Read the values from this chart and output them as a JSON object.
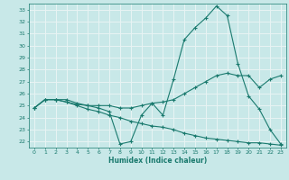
{
  "xlabel": "Humidex (Indice chaleur)",
  "ylabel": "",
  "xlim": [
    -0.5,
    23.5
  ],
  "ylim": [
    21.5,
    33.5
  ],
  "yticks": [
    22,
    23,
    24,
    25,
    26,
    27,
    28,
    29,
    30,
    31,
    32,
    33
  ],
  "xticks": [
    0,
    1,
    2,
    3,
    4,
    5,
    6,
    7,
    8,
    9,
    10,
    11,
    12,
    13,
    14,
    15,
    16,
    17,
    18,
    19,
    20,
    21,
    22,
    23
  ],
  "background_color": "#c8e8e8",
  "grid_color": "#e8f4f4",
  "line_color": "#1a7a6e",
  "line1_y": [
    24.8,
    25.5,
    25.5,
    25.5,
    25.2,
    25.0,
    24.8,
    24.5,
    21.8,
    22.0,
    24.2,
    25.2,
    24.2,
    27.2,
    30.5,
    31.5,
    32.3,
    33.3,
    32.5,
    28.5,
    25.8,
    24.7,
    23.0,
    21.8
  ],
  "line2_y": [
    24.8,
    25.5,
    25.5,
    25.3,
    25.1,
    25.0,
    25.0,
    25.0,
    24.8,
    24.8,
    25.0,
    25.2,
    25.3,
    25.5,
    26.0,
    26.5,
    27.0,
    27.5,
    27.7,
    27.5,
    27.5,
    26.5,
    27.2,
    27.5
  ],
  "line3_y": [
    24.8,
    25.5,
    25.5,
    25.3,
    25.0,
    24.7,
    24.5,
    24.2,
    24.0,
    23.7,
    23.5,
    23.3,
    23.2,
    23.0,
    22.7,
    22.5,
    22.3,
    22.2,
    22.1,
    22.0,
    21.9,
    21.9,
    21.8,
    21.7
  ]
}
